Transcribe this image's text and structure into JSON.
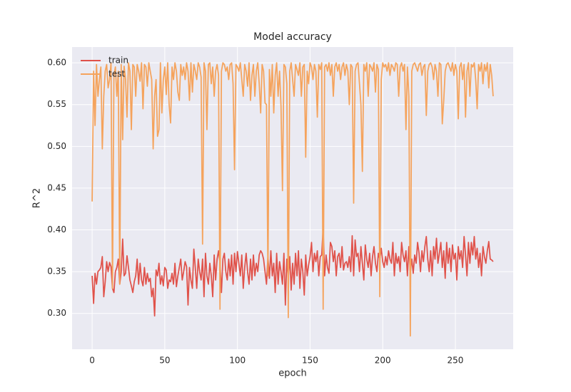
{
  "chart_data": {
    "type": "line",
    "title": "Model accuracy",
    "x_label": "epoch",
    "y_label": "R^2",
    "xlim": [
      -13.8,
      289.8
    ],
    "ylim": [
      0.2571,
      0.6189
    ],
    "xticks": [
      0,
      50,
      100,
      150,
      200,
      250
    ],
    "yticks": [
      {
        "value": 0.3,
        "label": "0.30"
      },
      {
        "value": 0.35,
        "label": "0.35"
      },
      {
        "value": 0.4,
        "label": "0.40"
      },
      {
        "value": 0.45,
        "label": "0.45"
      },
      {
        "value": 0.5,
        "label": "0.50"
      },
      {
        "value": 0.55,
        "label": "0.55"
      },
      {
        "value": 0.6,
        "label": "0.60"
      }
    ],
    "grid": true,
    "legend": "upper left",
    "x": [
      0,
      1,
      2,
      3,
      4,
      5,
      6,
      7,
      8,
      9,
      10,
      11,
      12,
      13,
      14,
      15,
      16,
      17,
      18,
      19,
      20,
      21,
      22,
      23,
      24,
      25,
      26,
      27,
      28,
      29,
      30,
      31,
      32,
      33,
      34,
      35,
      36,
      37,
      38,
      39,
      40,
      41,
      42,
      43,
      44,
      45,
      46,
      47,
      48,
      49,
      50,
      51,
      52,
      53,
      54,
      55,
      56,
      57,
      58,
      59,
      60,
      61,
      62,
      63,
      64,
      65,
      66,
      67,
      68,
      69,
      70,
      71,
      72,
      73,
      74,
      75,
      76,
      77,
      78,
      79,
      80,
      81,
      82,
      83,
      84,
      85,
      86,
      87,
      88,
      89,
      90,
      91,
      92,
      93,
      94,
      95,
      96,
      97,
      98,
      99,
      100,
      101,
      102,
      103,
      104,
      105,
      106,
      107,
      108,
      109,
      110,
      111,
      112,
      113,
      114,
      115,
      116,
      117,
      118,
      119,
      120,
      121,
      122,
      123,
      124,
      125,
      126,
      127,
      128,
      129,
      130,
      131,
      132,
      133,
      134,
      135,
      136,
      137,
      138,
      139,
      140,
      141,
      142,
      143,
      144,
      145,
      146,
      147,
      148,
      149,
      150,
      151,
      152,
      153,
      154,
      155,
      156,
      157,
      158,
      159,
      160,
      161,
      162,
      163,
      164,
      165,
      166,
      167,
      168,
      169,
      170,
      171,
      172,
      173,
      174,
      175,
      176,
      177,
      178,
      179,
      180,
      181,
      182,
      183,
      184,
      185,
      186,
      187,
      188,
      189,
      190,
      191,
      192,
      193,
      194,
      195,
      196,
      197,
      198,
      199,
      200,
      201,
      202,
      203,
      204,
      205,
      206,
      207,
      208,
      209,
      210,
      211,
      212,
      213,
      214,
      215,
      216,
      217,
      218,
      219,
      220,
      221,
      222,
      223,
      224,
      225,
      226,
      227,
      228,
      229,
      230,
      231,
      232,
      233,
      234,
      235,
      236,
      237,
      238,
      239,
      240,
      241,
      242,
      243,
      244,
      245,
      246,
      247,
      248,
      249,
      250,
      251,
      252,
      253,
      254,
      255,
      256,
      257,
      258,
      259,
      260,
      261,
      262,
      263,
      264,
      265,
      266,
      267,
      268,
      269,
      270,
      271,
      272,
      273,
      274,
      275,
      276
    ],
    "series": [
      {
        "name": "train",
        "color": "#e0524a",
        "values": [
          0.345,
          0.312,
          0.348,
          0.335,
          0.35,
          0.352,
          0.355,
          0.368,
          0.32,
          0.338,
          0.362,
          0.35,
          0.361,
          0.356,
          0.33,
          0.325,
          0.35,
          0.355,
          0.365,
          0.335,
          0.35,
          0.389,
          0.345,
          0.348,
          0.369,
          0.355,
          0.34,
          0.333,
          0.325,
          0.338,
          0.345,
          0.365,
          0.335,
          0.36,
          0.34,
          0.333,
          0.355,
          0.335,
          0.348,
          0.338,
          0.342,
          0.32,
          0.33,
          0.297,
          0.352,
          0.345,
          0.36,
          0.335,
          0.345,
          0.333,
          0.355,
          0.352,
          0.33,
          0.34,
          0.338,
          0.348,
          0.335,
          0.36,
          0.332,
          0.345,
          0.355,
          0.365,
          0.34,
          0.35,
          0.362,
          0.356,
          0.31,
          0.355,
          0.34,
          0.33,
          0.377,
          0.355,
          0.33,
          0.365,
          0.35,
          0.34,
          0.365,
          0.32,
          0.372,
          0.345,
          0.335,
          0.36,
          0.345,
          0.32,
          0.37,
          0.34,
          0.365,
          0.375,
          0.36,
          0.325,
          0.365,
          0.372,
          0.35,
          0.34,
          0.365,
          0.345,
          0.37,
          0.335,
          0.372,
          0.35,
          0.374,
          0.36,
          0.345,
          0.37,
          0.33,
          0.355,
          0.372,
          0.35,
          0.335,
          0.365,
          0.34,
          0.37,
          0.345,
          0.36,
          0.35,
          0.37,
          0.375,
          0.372,
          0.365,
          0.35,
          0.335,
          0.368,
          0.342,
          0.375,
          0.345,
          0.36,
          0.325,
          0.372,
          0.335,
          0.362,
          0.35,
          0.335,
          0.372,
          0.31,
          0.365,
          0.342,
          0.368,
          0.328,
          0.36,
          0.335,
          0.372,
          0.345,
          0.375,
          0.33,
          0.365,
          0.35,
          0.322,
          0.37,
          0.345,
          0.358,
          0.368,
          0.385,
          0.35,
          0.372,
          0.362,
          0.375,
          0.345,
          0.368,
          0.37,
          0.403,
          0.345,
          0.37,
          0.355,
          0.348,
          0.385,
          0.38,
          0.362,
          0.375,
          0.345,
          0.368,
          0.372,
          0.355,
          0.38,
          0.352,
          0.36,
          0.362,
          0.355,
          0.368,
          0.35,
          0.393,
          0.345,
          0.388,
          0.368,
          0.372,
          0.35,
          0.38,
          0.36,
          0.34,
          0.382,
          0.365,
          0.355,
          0.372,
          0.345,
          0.368,
          0.38,
          0.36,
          0.35,
          0.372,
          0.365,
          0.378,
          0.362,
          0.355,
          0.368,
          0.358,
          0.375,
          0.365,
          0.36,
          0.385,
          0.345,
          0.372,
          0.36,
          0.368,
          0.35,
          0.385,
          0.37,
          0.362,
          0.375,
          0.345,
          0.38,
          0.35,
          0.365,
          0.348,
          0.37,
          0.36,
          0.385,
          0.372,
          0.35,
          0.375,
          0.362,
          0.38,
          0.392,
          0.365,
          0.35,
          0.375,
          0.345,
          0.38,
          0.365,
          0.39,
          0.36,
          0.372,
          0.385,
          0.355,
          0.375,
          0.342,
          0.385,
          0.36,
          0.378,
          0.35,
          0.382,
          0.365,
          0.372,
          0.34,
          0.38,
          0.365,
          0.375,
          0.355,
          0.392,
          0.37,
          0.345,
          0.385,
          0.36,
          0.385,
          0.37,
          0.392,
          0.365,
          0.378,
          0.355,
          0.372,
          0.345,
          0.38,
          0.368,
          0.36,
          0.375,
          0.386,
          0.365,
          0.364,
          0.362
        ]
      },
      {
        "name": "test",
        "color": "#f5a35c",
        "values": [
          0.434,
          0.59,
          0.525,
          0.598,
          0.56,
          0.58,
          0.595,
          0.497,
          0.56,
          0.59,
          0.598,
          0.57,
          0.58,
          0.6,
          0.33,
          0.585,
          0.595,
          0.56,
          0.59,
          0.335,
          0.598,
          0.508,
          0.596,
          0.58,
          0.535,
          0.6,
          0.59,
          0.52,
          0.598,
          0.595,
          0.56,
          0.598,
          0.59,
          0.578,
          0.6,
          0.545,
          0.598,
          0.595,
          0.572,
          0.6,
          0.59,
          0.58,
          0.497,
          0.56,
          0.58,
          0.512,
          0.52,
          0.6,
          0.54,
          0.58,
          0.595,
          0.562,
          0.6,
          0.55,
          0.528,
          0.595,
          0.58,
          0.6,
          0.59,
          0.565,
          0.555,
          0.598,
          0.585,
          0.595,
          0.58,
          0.6,
          0.59,
          0.555,
          0.6,
          0.565,
          0.598,
          0.59,
          0.58,
          0.6,
          0.595,
          0.583,
          0.383,
          0.6,
          0.59,
          0.52,
          0.598,
          0.6,
          0.575,
          0.595,
          0.56,
          0.59,
          0.598,
          0.585,
          0.305,
          0.59,
          0.6,
          0.598,
          0.59,
          0.595,
          0.58,
          0.598,
          0.6,
          0.575,
          0.472,
          0.598,
          0.595,
          0.59,
          0.6,
          0.58,
          0.56,
          0.598,
          0.59,
          0.572,
          0.6,
          0.555,
          0.585,
          0.598,
          0.56,
          0.59,
          0.6,
          0.575,
          0.54,
          0.598,
          0.59,
          0.552,
          0.55,
          0.345,
          0.592,
          0.56,
          0.598,
          0.54,
          0.585,
          0.6,
          0.56,
          0.59,
          0.548,
          0.447,
          0.598,
          0.595,
          0.575,
          0.295,
          0.59,
          0.6,
          0.58,
          0.56,
          0.598,
          0.592,
          0.585,
          0.6,
          0.56,
          0.595,
          0.598,
          0.487,
          0.59,
          0.575,
          0.6,
          0.595,
          0.58,
          0.598,
          0.59,
          0.535,
          0.598,
          0.592,
          0.6,
          0.305,
          0.595,
          0.598,
          0.59,
          0.6,
          0.585,
          0.598,
          0.56,
          0.595,
          0.6,
          0.59,
          0.598,
          0.58,
          0.595,
          0.6,
          0.585,
          0.598,
          0.59,
          0.55,
          0.598,
          0.595,
          0.432,
          0.59,
          0.598,
          0.6,
          0.575,
          0.55,
          0.47,
          0.598,
          0.59,
          0.6,
          0.56,
          0.598,
          0.595,
          0.59,
          0.6,
          0.565,
          0.598,
          0.592,
          0.32,
          0.58,
          0.6,
          0.595,
          0.598,
          0.59,
          0.6,
          0.585,
          0.598,
          0.595,
          0.59,
          0.6,
          0.598,
          0.56,
          0.595,
          0.6,
          0.59,
          0.598,
          0.52,
          0.595,
          0.56,
          0.273,
          0.59,
          0.598,
          0.6,
          0.595,
          0.59,
          0.598,
          0.6,
          0.585,
          0.595,
          0.598,
          0.537,
          0.59,
          0.598,
          0.6,
          0.595,
          0.58,
          0.598,
          0.59,
          0.56,
          0.6,
          0.598,
          0.527,
          0.555,
          0.59,
          0.598,
          0.6,
          0.595,
          0.59,
          0.6,
          0.585,
          0.598,
          0.59,
          0.533,
          0.595,
          0.6,
          0.58,
          0.598,
          0.535,
          0.59,
          0.6,
          0.56,
          0.598,
          0.595,
          0.6,
          0.58,
          0.545,
          0.598,
          0.59,
          0.6,
          0.575,
          0.598,
          0.59,
          0.6,
          0.57,
          0.598,
          0.585,
          0.56
        ]
      }
    ]
  }
}
